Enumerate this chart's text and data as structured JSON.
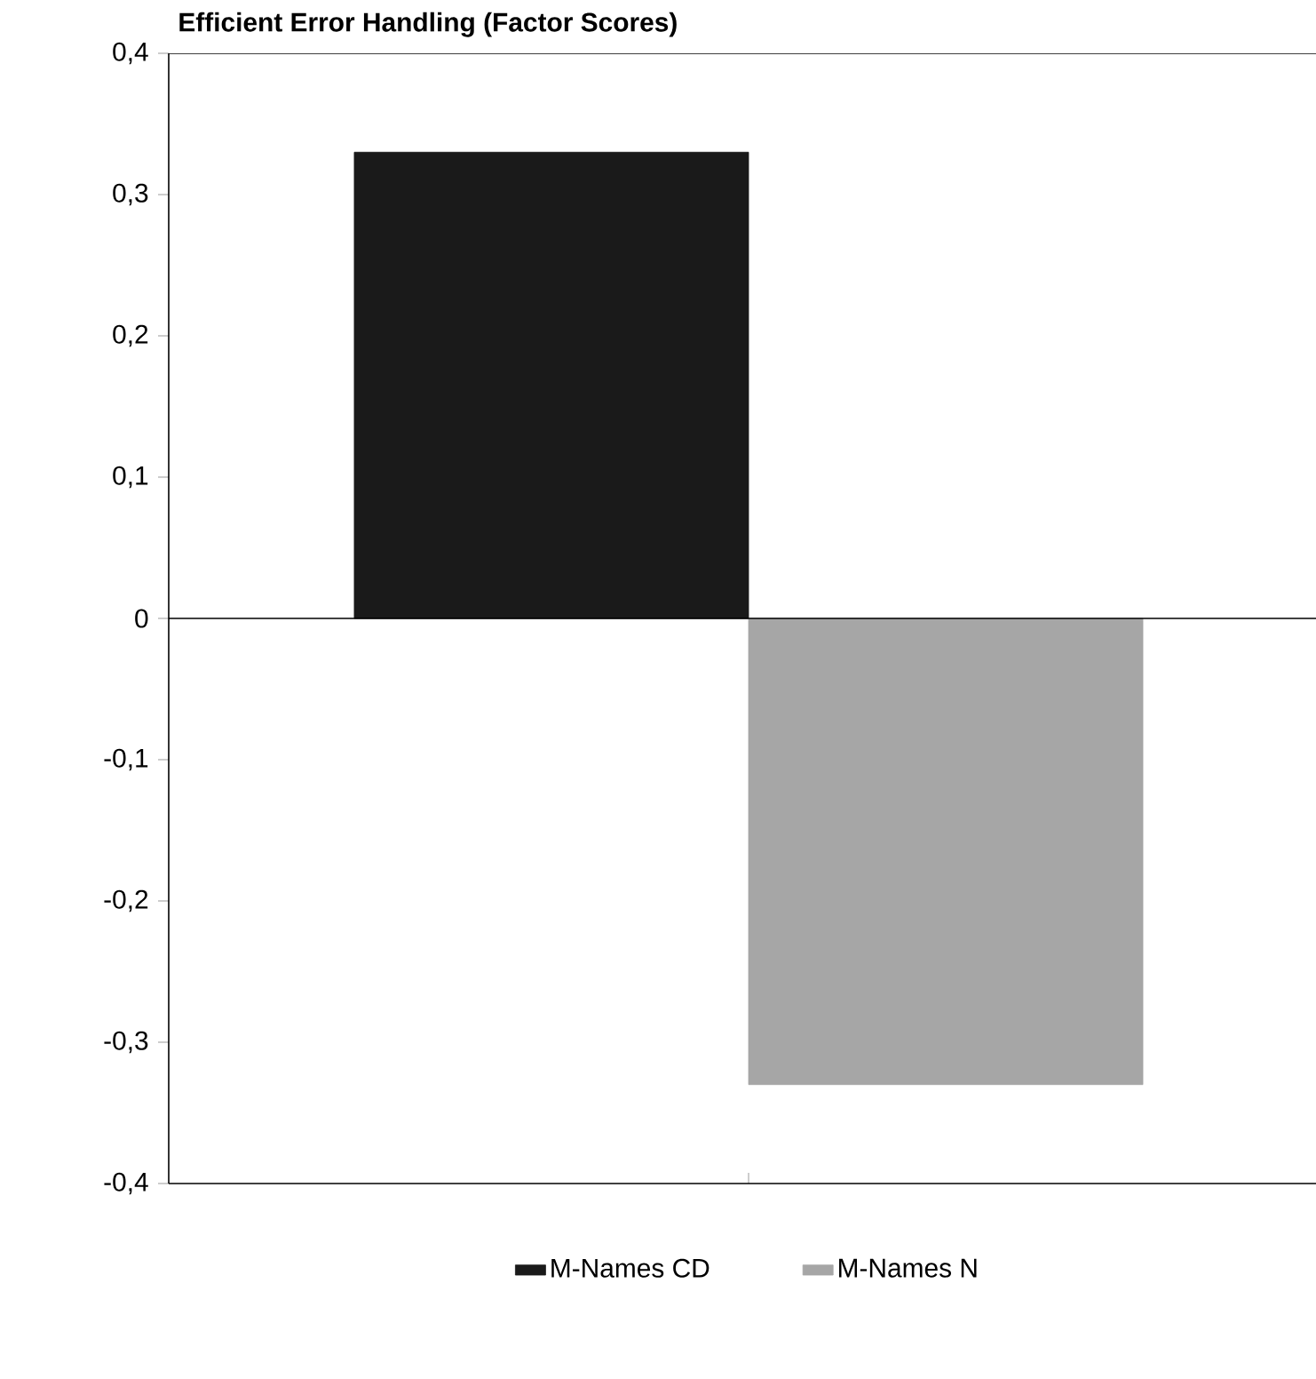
{
  "chart_data": {
    "type": "bar",
    "title": "Efficient Error Handling (Factor Scores)",
    "categories": [
      null
    ],
    "series": [
      {
        "name": "M-Names CD",
        "color": "#1a1a1a",
        "values": [
          0.33
        ]
      },
      {
        "name": "M-Names N",
        "color": "#a6a6a6",
        "values": [
          -0.33
        ]
      }
    ],
    "ylim": [
      -0.4,
      0.4
    ],
    "yticks": [
      {
        "value": -0.4,
        "label": "-0,4"
      },
      {
        "value": -0.3,
        "label": "-0,3"
      },
      {
        "value": -0.2,
        "label": "-0,2"
      },
      {
        "value": -0.1,
        "label": "-0,1"
      },
      0,
      {
        "value": 0.1,
        "label": "0,1"
      },
      {
        "value": 0.2,
        "label": "0,2"
      },
      {
        "value": 0.3,
        "label": "0,3"
      },
      {
        "value": 0.4,
        "label": "0,4"
      }
    ],
    "ref_lines": [
      {
        "axis": "y",
        "value": 0
      }
    ],
    "legend": "bottom",
    "grid": false
  }
}
